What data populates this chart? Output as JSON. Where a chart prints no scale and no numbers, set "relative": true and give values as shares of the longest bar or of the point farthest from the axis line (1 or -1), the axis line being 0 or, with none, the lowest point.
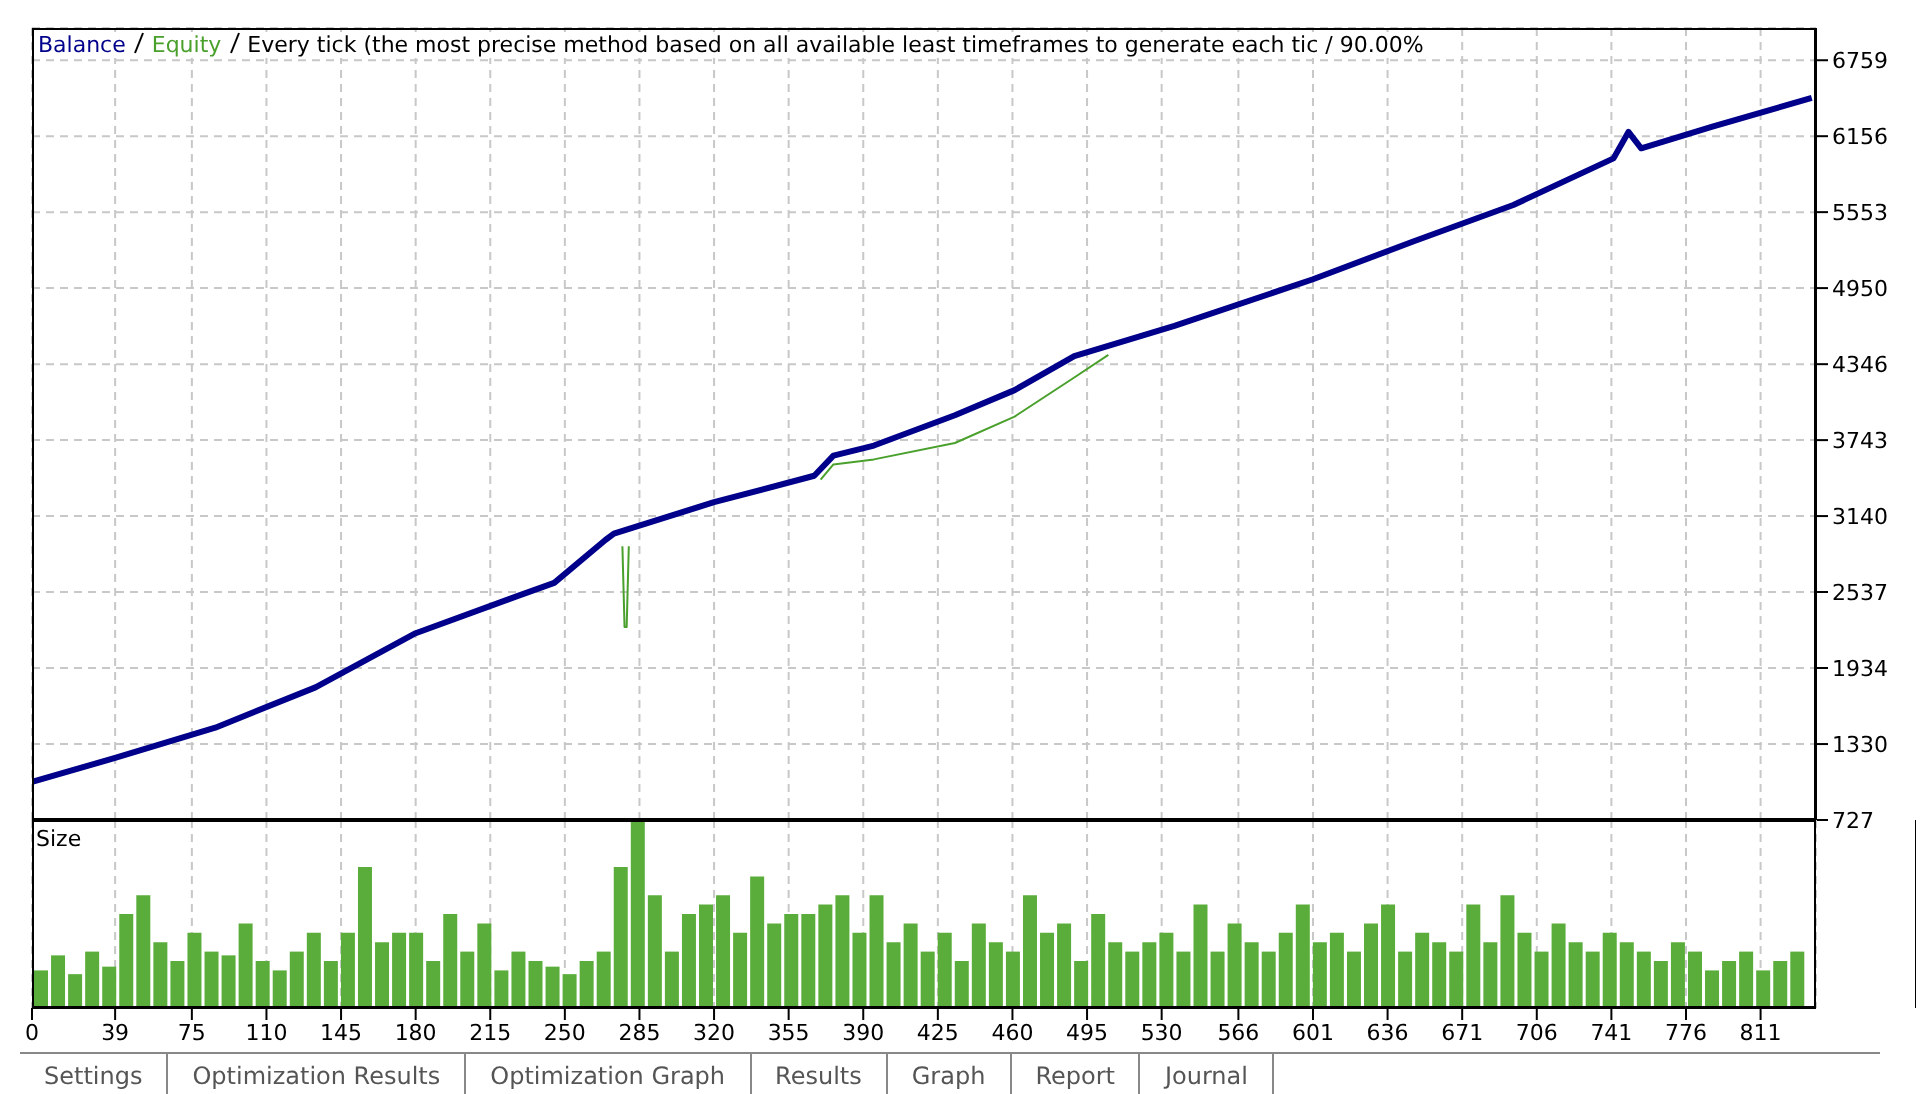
{
  "chart_data": [
    {
      "type": "line",
      "title": "Every tick (the most precise method based on all available least timeframes to generate each tic / 90.00%",
      "legend": "top left",
      "grid": true,
      "tick_labels": "y",
      "xlim": [
        0,
        837
      ],
      "xticks": [
        0,
        39,
        75,
        110,
        145,
        180,
        215,
        250,
        285,
        320,
        355,
        390,
        425,
        460,
        495,
        530,
        566,
        601,
        636,
        671,
        706,
        741,
        776,
        811
      ],
      "ylim": [
        727,
        7015
      ],
      "yticks": [
        727,
        1330,
        1934,
        2537,
        3140,
        3743,
        4346,
        4950,
        5553,
        6156,
        6759
      ],
      "series": [
        {
          "name": "Balance",
          "color": "#00008b",
          "x": [
            0,
            39,
            86,
            133,
            180,
            227,
            245,
            269,
            273,
            301,
            320,
            367,
            376,
            395,
            433,
            461,
            489,
            536,
            601,
            648,
            695,
            742,
            749,
            755,
            788,
            835
          ],
          "values": [
            1030,
            1220,
            1460,
            1780,
            2210,
            2500,
            2610,
            2950,
            3000,
            3150,
            3250,
            3460,
            3620,
            3700,
            3940,
            4140,
            4410,
            4650,
            5020,
            5320,
            5610,
            5980,
            6190,
            6060,
            6230,
            6460
          ]
        },
        {
          "name": "Equity",
          "color": "#4aa02c",
          "x": [
            277,
            278,
            279,
            280,
            320,
            370,
            376,
            395,
            433,
            461,
            489,
            505
          ],
          "values": [
            2900,
            2260,
            2260,
            2900,
            null,
            3430,
            3550,
            3590,
            3720,
            3930,
            4240,
            4420
          ]
        }
      ]
    },
    {
      "type": "bar",
      "title": "Size",
      "relative": true,
      "grid": "x",
      "tick_labels": "x",
      "color": "#5aad3a",
      "xlim": [
        0,
        837
      ],
      "xticks": [
        0,
        39,
        75,
        110,
        145,
        180,
        215,
        250,
        285,
        320,
        355,
        390,
        425,
        460,
        495,
        530,
        566,
        601,
        636,
        671,
        706,
        741,
        776,
        811
      ],
      "x": [
        4,
        12,
        20,
        28,
        36,
        44,
        52,
        60,
        68,
        76,
        84,
        92,
        100,
        108,
        116,
        124,
        132,
        140,
        148,
        156,
        164,
        172,
        180,
        188,
        196,
        204,
        212,
        220,
        228,
        236,
        244,
        252,
        260,
        268,
        276,
        284,
        292,
        300,
        308,
        316,
        324,
        332,
        340,
        348,
        356,
        364,
        372,
        380,
        388,
        396,
        404,
        412,
        420,
        428,
        436,
        444,
        452,
        460,
        468,
        476,
        484,
        492,
        500,
        508,
        516,
        524,
        532,
        540,
        548,
        556,
        564,
        572,
        580,
        588,
        596,
        604,
        612,
        620,
        628,
        636,
        644,
        652,
        660,
        668,
        676,
        684,
        692,
        700,
        708,
        716,
        724,
        732,
        740,
        748,
        756,
        764,
        772,
        780,
        788,
        796,
        804,
        812,
        820,
        828
      ],
      "values": [
        0.2,
        0.28,
        0.18,
        0.3,
        0.22,
        0.5,
        0.6,
        0.35,
        0.25,
        0.4,
        0.3,
        0.28,
        0.45,
        0.25,
        0.2,
        0.3,
        0.4,
        0.25,
        0.4,
        0.75,
        0.35,
        0.4,
        0.4,
        0.25,
        0.5,
        0.3,
        0.45,
        0.2,
        0.3,
        0.25,
        0.22,
        0.18,
        0.25,
        0.3,
        0.75,
        1,
        0.6,
        0.3,
        0.5,
        0.55,
        0.6,
        0.4,
        0.7,
        0.45,
        0.5,
        0.5,
        0.55,
        0.6,
        0.4,
        0.6,
        0.35,
        0.45,
        0.3,
        0.4,
        0.25,
        0.45,
        0.35,
        0.3,
        0.6,
        0.4,
        0.45,
        0.25,
        0.5,
        0.35,
        0.3,
        0.35,
        0.4,
        0.3,
        0.55,
        0.3,
        0.45,
        0.35,
        0.3,
        0.4,
        0.55,
        0.35,
        0.4,
        0.3,
        0.45,
        0.55,
        0.3,
        0.4,
        0.35,
        0.3,
        0.55,
        0.35,
        0.6,
        0.4,
        0.3,
        0.45,
        0.35,
        0.3,
        0.4,
        0.35,
        0.3,
        0.25,
        0.35,
        0.3,
        0.2,
        0.25,
        0.3,
        0.2,
        0.25,
        0.3
      ],
      "annotations": [
        "Settings",
        "Optimization Results",
        "Optimization Graph",
        "Results",
        "Graph",
        "Report",
        "Journal"
      ]
    }
  ]
}
